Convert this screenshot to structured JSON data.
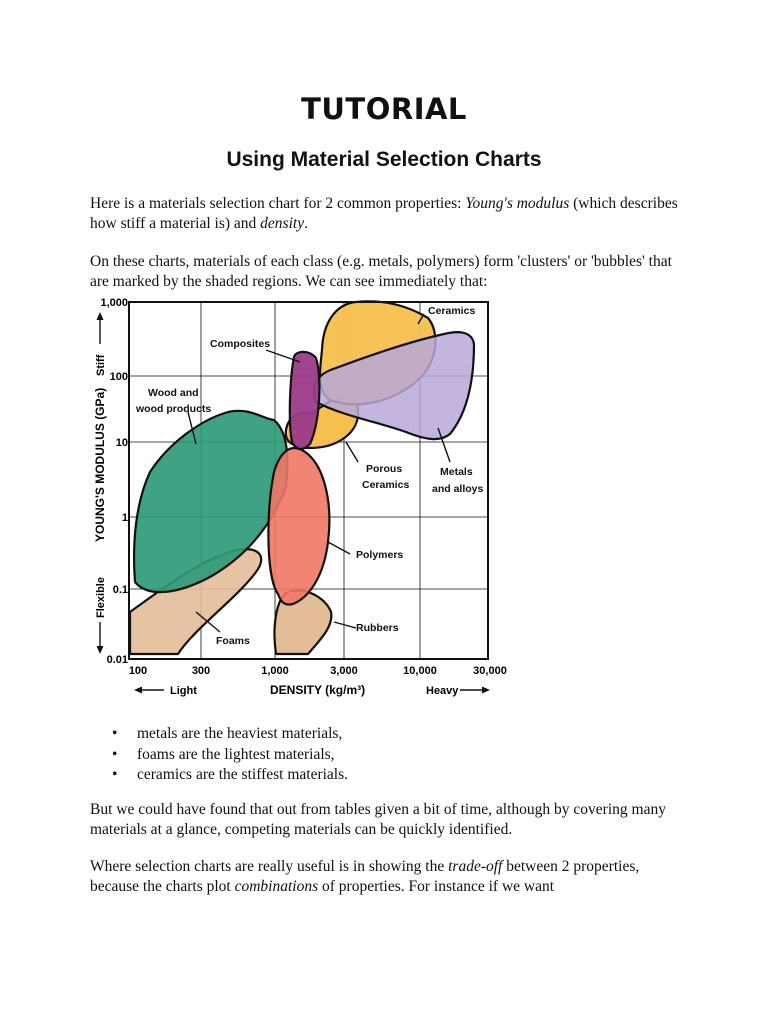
{
  "title": "TUTORIAL",
  "subtitle": "Using Material Selection Charts",
  "intro": {
    "before": "Here is a materials selection chart for 2 common properties: ",
    "em1": "Young's modulus",
    "middle": " (which describes how stiff a material is) and ",
    "em2": "density",
    "after": "."
  },
  "clusters_paragraph": "On these charts, materials of each class (e.g. metals, polymers) form 'clusters' or 'bubbles' that are marked by the shaded regions. We can see immediately that:",
  "chart_data": {
    "type": "area",
    "x_scale": "log",
    "y_scale": "log",
    "xlim": [
      100,
      30000
    ],
    "ylim": [
      0.01,
      1000
    ],
    "grid": true,
    "xlabel": "DENSITY (kg/m³)",
    "ylabel": "YOUNG'S MODULUS (GPa)",
    "x_ticks": [
      "100",
      "300",
      "1,000",
      "3,000",
      "10,000",
      "30,000"
    ],
    "y_ticks": [
      "0.01",
      "0.1",
      "1",
      "10",
      "100",
      "1,000"
    ],
    "x_arrow_labels": {
      "low": "Light",
      "high": "Heavy"
    },
    "y_arrow_labels": {
      "low": "Flexible",
      "high": "Stiff"
    },
    "series": [
      {
        "name": "Ceramics",
        "color": "#f7c04e",
        "x_range": [
          2000,
          20000
        ],
        "y_range": [
          5,
          1000
        ]
      },
      {
        "name": "Metals and alloys",
        "color": "#b9a8d8",
        "x_range": [
          2300,
          22000
        ],
        "y_range": [
          10,
          400
        ]
      },
      {
        "name": "Composites",
        "color": "#9b3a8a",
        "x_range": [
          1500,
          2200
        ],
        "y_range": [
          6,
          150
        ]
      },
      {
        "name": "Wood and wood products",
        "color": "#2f9a7a",
        "x_range": [
          100,
          1500
        ],
        "y_range": [
          0.06,
          50
        ]
      },
      {
        "name": "Porous Ceramics",
        "color": "#f7c04e",
        "x_range": [
          1200,
          2600
        ],
        "y_range": [
          5,
          60
        ]
      },
      {
        "name": "Polymers",
        "color": "#ef7766",
        "x_range": [
          950,
          2400
        ],
        "y_range": [
          0.01,
          8
        ]
      },
      {
        "name": "Foams",
        "color": "#e3bd98",
        "x_range": [
          100,
          650
        ],
        "y_range": [
          0.01,
          0.6
        ]
      },
      {
        "name": "Rubbers",
        "color": "#e3bd98",
        "x_range": [
          950,
          2300
        ],
        "y_range": [
          0.01,
          0.1
        ]
      }
    ]
  },
  "bullets": [
    "metals are the heaviest materials,",
    "foams are the lightest materials,",
    "ceramics are the stiffest materials."
  ],
  "paragraph2": "But we could have found that out from tables given a bit of time, although by covering many materials at a glance, competing materials can be quickly identified.",
  "paragraph3": {
    "before": "Where selection charts are really useful is in showing the ",
    "em1": "trade-off",
    "middle": " between 2 properties, because the charts plot ",
    "em2": "combinations",
    "after": " of properties. For instance if we want"
  }
}
